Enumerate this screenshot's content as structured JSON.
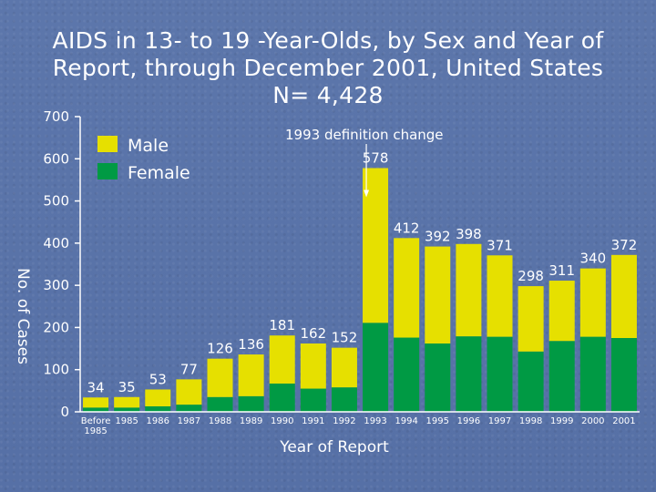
{
  "colors": {
    "male": "#e6e000",
    "female": "#009a44",
    "axis": "#ffffff",
    "background": "#5a73a8"
  },
  "chart_data": {
    "type": "bar",
    "stacked": true,
    "title": [
      "AIDS in 13- to 19 -Year-Olds, by Sex and Year of",
      "Report, through December 2001, United States",
      "N= 4,428"
    ],
    "xlabel": "Year of Report",
    "ylabel": "No. of Cases",
    "ylim": [
      0,
      700
    ],
    "yticks": [
      "0",
      "100",
      "200",
      "300",
      "400",
      "500",
      "600",
      "700"
    ],
    "categories": [
      [
        "Before",
        "1985"
      ],
      [
        "1985"
      ],
      [
        "1986"
      ],
      [
        "1987"
      ],
      [
        "1988"
      ],
      [
        "1989"
      ],
      [
        "1990"
      ],
      [
        "1991"
      ],
      [
        "1992"
      ],
      [
        "1993"
      ],
      [
        "1994"
      ],
      [
        "1995"
      ],
      [
        "1996"
      ],
      [
        "1997"
      ],
      [
        "1998"
      ],
      [
        "1999"
      ],
      [
        "2000"
      ],
      [
        "2001"
      ]
    ],
    "totals": [
      34,
      35,
      53,
      77,
      126,
      136,
      181,
      162,
      152,
      578,
      412,
      392,
      398,
      371,
      298,
      311,
      340,
      372
    ],
    "series": [
      {
        "name": "Female",
        "values": [
          10,
          10,
          13,
          17,
          35,
          37,
          67,
          55,
          58,
          211,
          176,
          162,
          179,
          178,
          143,
          168,
          178,
          175
        ]
      },
      {
        "name": "Male",
        "values": [
          24,
          25,
          40,
          60,
          91,
          99,
          114,
          107,
          94,
          367,
          236,
          230,
          219,
          193,
          155,
          143,
          162,
          197
        ]
      }
    ],
    "legend": {
      "position": "top-left",
      "items": [
        "Male",
        "Female"
      ]
    },
    "annotation": {
      "text": "1993 definition change",
      "category_index": 9
    }
  }
}
